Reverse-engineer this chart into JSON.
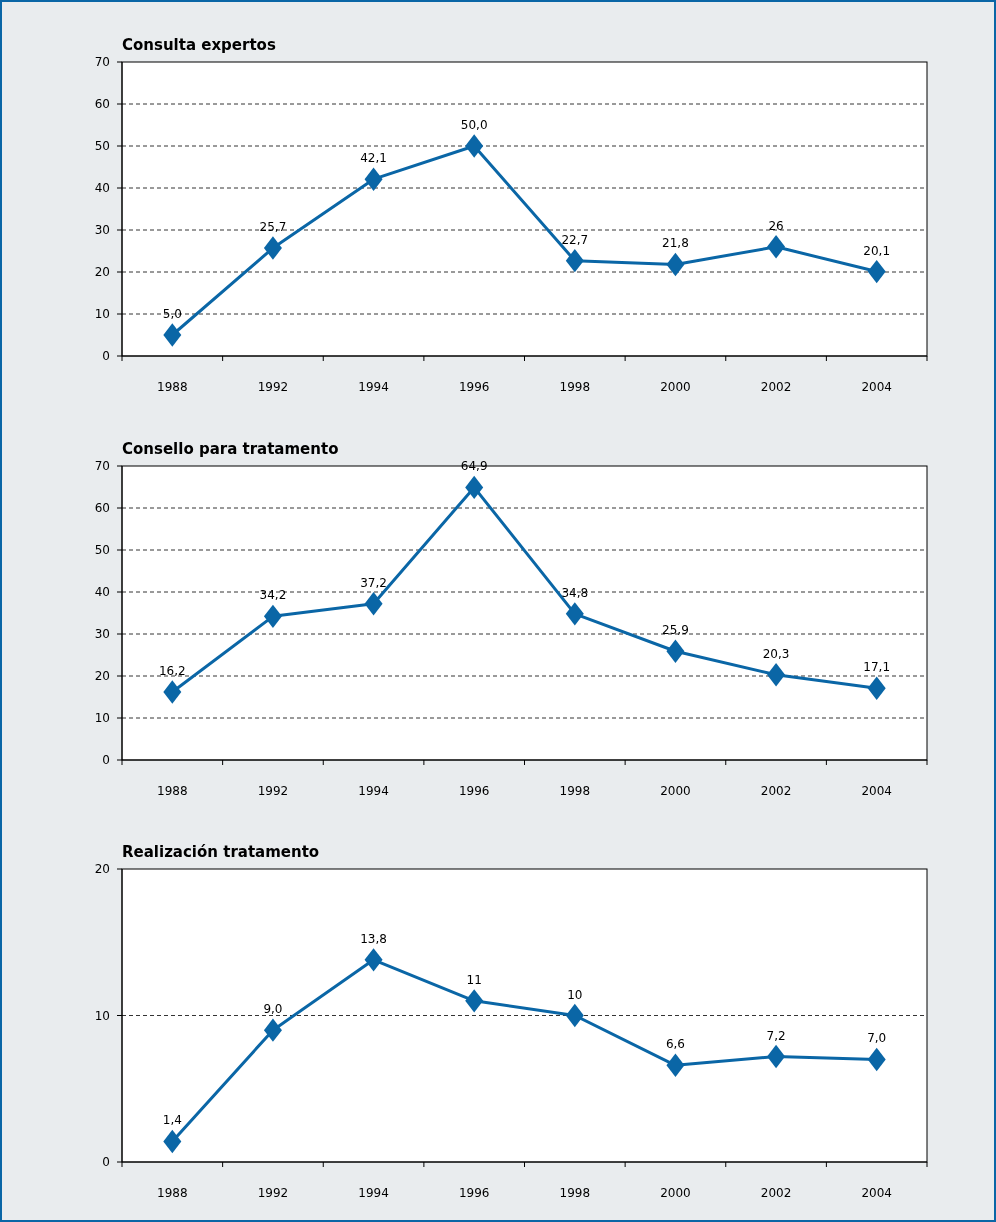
{
  "chart_data": [
    {
      "type": "line",
      "title": "Consulta expertos",
      "categories": [
        "1988",
        "1992",
        "1994",
        "1996",
        "1998",
        "2000",
        "2002",
        "2004"
      ],
      "values": [
        5.0,
        25.7,
        42.1,
        50.0,
        22.7,
        21.8,
        26,
        20.1
      ],
      "value_labels": [
        "5,0",
        "25,7",
        "42,1",
        "50,0",
        "22,7",
        "21,8",
        "26",
        "20,1"
      ],
      "color": "#0a66a6",
      "marker": "diamond",
      "ylim": [
        0,
        70
      ],
      "yticks": [
        0,
        10,
        20,
        30,
        40,
        50,
        60,
        70
      ],
      "grid": "y"
    },
    {
      "type": "line",
      "title": "Consello para tratamento",
      "categories": [
        "1988",
        "1992",
        "1994",
        "1996",
        "1998",
        "2000",
        "2002",
        "2004"
      ],
      "values": [
        16.2,
        34.2,
        37.2,
        64.9,
        34.8,
        25.9,
        20.3,
        17.1
      ],
      "value_labels": [
        "16,2",
        "34,2",
        "37,2",
        "64,9",
        "34,8",
        "25,9",
        "20,3",
        "17,1"
      ],
      "color": "#0a66a6",
      "marker": "diamond",
      "ylim": [
        0,
        70
      ],
      "yticks": [
        0,
        10,
        20,
        30,
        40,
        50,
        60,
        70
      ],
      "grid": "y"
    },
    {
      "type": "line",
      "title": "Realización tratamento",
      "categories": [
        "1988",
        "1992",
        "1994",
        "1996",
        "1998",
        "2000",
        "2002",
        "2004"
      ],
      "values": [
        1.4,
        9.0,
        13.8,
        11,
        10,
        6.6,
        7.2,
        7.0
      ],
      "value_labels": [
        "1,4",
        "9,0",
        "13,8",
        "11",
        "10",
        "6,6",
        "7,2",
        "7,0"
      ],
      "color": "#0a66a6",
      "marker": "diamond",
      "ylim": [
        0,
        20
      ],
      "yticks": [
        0,
        10,
        20
      ],
      "grid": "y"
    }
  ]
}
